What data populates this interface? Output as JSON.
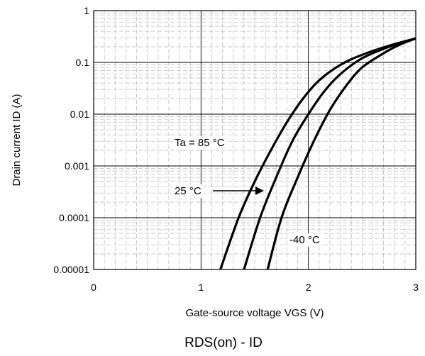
{
  "chart_data": {
    "type": "line",
    "title": "",
    "caption": "RDS(on) - ID",
    "xlabel": "Gate-source voltage VGS (V)",
    "ylabel": "Drain current ID (A)",
    "xlim": [
      0,
      3
    ],
    "ylim": [
      1e-05,
      1
    ],
    "yscale": "log",
    "grid": true,
    "x_ticks": [
      0,
      1,
      2,
      3
    ],
    "x_tick_labels": [
      "0",
      "1",
      "2",
      "3"
    ],
    "y_ticks": [
      1e-05,
      0.0001,
      0.001,
      0.01,
      0.1,
      1
    ],
    "y_tick_labels": [
      "0.00001",
      "0.0001",
      "0.001",
      "0.01",
      "0.1",
      "1"
    ],
    "series": [
      {
        "label": "Ta = 85 °C",
        "x": [
          1.18,
          1.35,
          1.5,
          1.65,
          1.8,
          1.95,
          2.1,
          2.3,
          2.5,
          2.75,
          3.0
        ],
        "y": [
          1e-05,
          0.0001,
          0.0005,
          0.002,
          0.007,
          0.02,
          0.045,
          0.09,
          0.14,
          0.21,
          0.29
        ]
      },
      {
        "label": "25 °C",
        "x": [
          1.4,
          1.55,
          1.7,
          1.85,
          2.0,
          2.15,
          2.3,
          2.5,
          2.75,
          3.0
        ],
        "y": [
          1e-05,
          0.0001,
          0.0006,
          0.003,
          0.01,
          0.028,
          0.06,
          0.12,
          0.2,
          0.29
        ]
      },
      {
        "label": "-40 °C",
        "x": [
          1.62,
          1.75,
          1.9,
          2.05,
          2.2,
          2.35,
          2.5,
          2.7,
          2.85,
          3.0
        ],
        "y": [
          1e-05,
          0.0001,
          0.0006,
          0.003,
          0.012,
          0.035,
          0.08,
          0.15,
          0.22,
          0.29
        ]
      }
    ],
    "annotations": [
      {
        "text": "Ta = 85 °C",
        "series": "Ta = 85 °C"
      },
      {
        "text": "25 °C",
        "series": "25 °C",
        "arrow": true
      },
      {
        "text": "-40 °C",
        "series": "-40 °C"
      }
    ]
  }
}
